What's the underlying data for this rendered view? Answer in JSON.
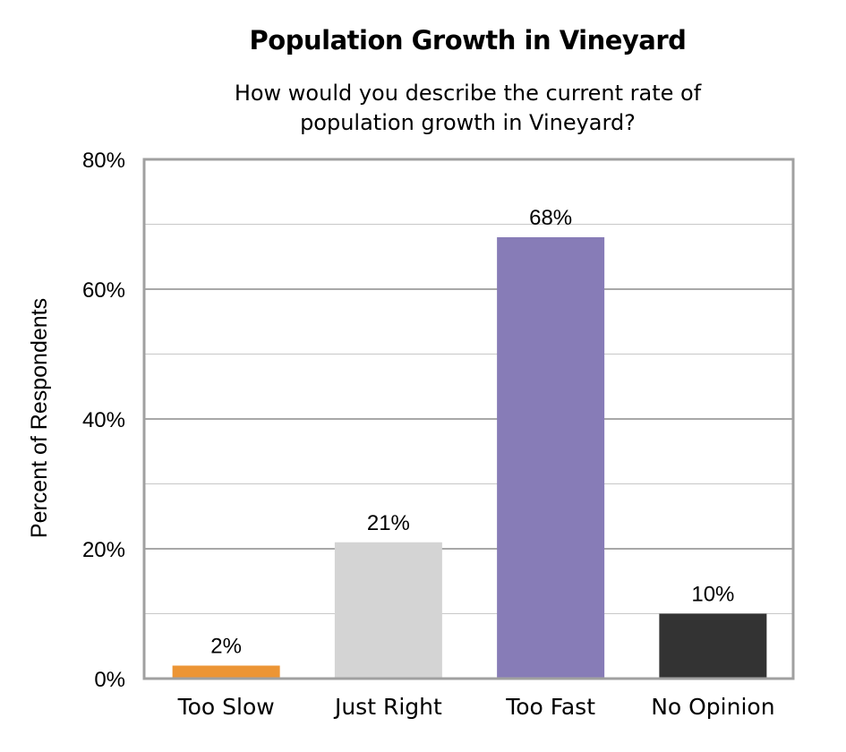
{
  "chart_data": {
    "type": "bar",
    "title": "Population Growth in Vineyard",
    "subtitle": [
      "How would you describe the current rate of",
      "population growth in Vineyard?"
    ],
    "xlabel": "",
    "ylabel": "Percent of Respondents",
    "categories": [
      "Too Slow",
      "Just Right",
      "Too Fast",
      "No Opinion"
    ],
    "values": [
      2,
      21,
      68,
      10
    ],
    "data_labels": [
      "2%",
      "21%",
      "68%",
      "10%"
    ],
    "colors": [
      "#ec9535",
      "#d4d4d4",
      "#877cb7",
      "#333333"
    ],
    "ylim": [
      0,
      80
    ],
    "yticks": [
      0,
      20,
      40,
      60,
      80
    ],
    "ytick_labels": [
      "0%",
      "20%",
      "40%",
      "60%",
      "80%"
    ],
    "grid": true,
    "legend": "none"
  }
}
